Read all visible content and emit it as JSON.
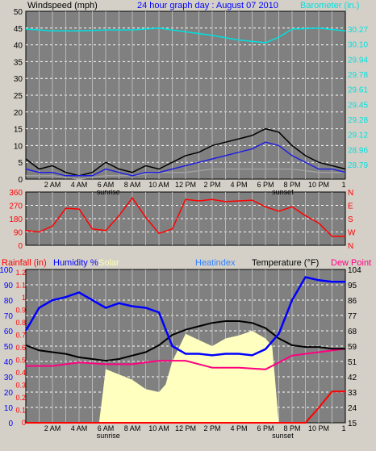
{
  "title": "24 hour graph day : August 07 2010",
  "colors": {
    "bg": "#d4d0c8",
    "plot": "#808080",
    "grid": "#ffffff",
    "wind": "#000000",
    "gust": "#2020e0",
    "windavg": "#a0a0a0",
    "baro": "#00e0e0",
    "dir": "#ff0000",
    "rain": "#ff0000",
    "humidity": "#0000ff",
    "solar": "#ffffc0",
    "temp": "#000000",
    "dew": "#ff0080",
    "heatindex": "#3080ff"
  },
  "chart_data": [
    {
      "type": "line",
      "title": "24 hour graph day : August 07 2010",
      "ylabel": "Windspeed (mph)",
      "y2label": "Barometer (in.)",
      "xticks": [
        "2 AM",
        "4 AM",
        "6 AM",
        "8 AM",
        "10 AM",
        "12 PM",
        "2 PM",
        "4 PM",
        "6 PM",
        "8 PM",
        "10 PM"
      ],
      "xmarkers": [
        "sunrise",
        "sunset"
      ],
      "ylim": [
        0,
        50
      ],
      "yticks": [
        "0",
        "5",
        "10",
        "15",
        "20",
        "25",
        "30",
        "35",
        "40",
        "45",
        "50"
      ],
      "y2ticks": [
        "28.79",
        "28.96",
        "29.12",
        "29.28",
        "29.45",
        "29.61",
        "29.78",
        "29.94",
        "30.10",
        "30.27"
      ],
      "series": [
        {
          "name": "Barometer",
          "axis": "y2",
          "x": [
            0,
            2,
            4,
            6,
            8,
            10,
            12,
            14,
            16,
            18,
            19,
            20,
            22,
            24
          ],
          "y": [
            30.27,
            30.25,
            30.25,
            30.26,
            30.26,
            30.28,
            30.24,
            30.2,
            30.15,
            30.12,
            30.18,
            30.27,
            30.28,
            30.25
          ]
        },
        {
          "name": "Windspeed",
          "x": [
            0,
            1,
            2,
            3,
            4,
            5,
            6,
            7,
            8,
            9,
            10,
            11,
            12,
            13,
            14,
            15,
            16,
            17,
            18,
            19,
            20,
            21,
            22,
            23,
            24
          ],
          "y": [
            6,
            3,
            4,
            2,
            1,
            2,
            5,
            3,
            2,
            4,
            3,
            5,
            7,
            8,
            10,
            11,
            12,
            13,
            15,
            14,
            10,
            7,
            5,
            4,
            3
          ]
        },
        {
          "name": "Gust",
          "x": [
            0,
            1,
            2,
            3,
            4,
            5,
            6,
            7,
            8,
            9,
            10,
            11,
            12,
            13,
            14,
            15,
            16,
            17,
            18,
            19,
            20,
            21,
            22,
            23,
            24
          ],
          "y": [
            3,
            2,
            2,
            1,
            1,
            1,
            3,
            2,
            1,
            2,
            2,
            3,
            4,
            5,
            6,
            7,
            8,
            9,
            11,
            10,
            7,
            5,
            3,
            3,
            2
          ]
        },
        {
          "name": "Wind average",
          "x": [
            0,
            2,
            4,
            6,
            8,
            10,
            12,
            14,
            16,
            18,
            20,
            22,
            24
          ],
          "y": [
            1,
            1,
            0,
            1,
            1,
            2,
            2,
            3,
            3,
            3,
            3,
            2,
            2
          ]
        }
      ]
    },
    {
      "type": "line",
      "ylim": [
        0,
        360
      ],
      "yticks": [
        "0",
        "90",
        "180",
        "270",
        "360"
      ],
      "y2ticks": [
        "N",
        "W",
        "S",
        "E",
        "N"
      ],
      "series": [
        {
          "name": "Wind direction",
          "x": [
            0,
            1,
            2,
            3,
            4,
            5,
            6,
            7,
            8,
            9,
            10,
            11,
            12,
            13,
            14,
            15,
            16,
            17,
            18,
            19,
            20,
            21,
            22,
            23,
            24
          ],
          "y": [
            100,
            90,
            130,
            250,
            245,
            110,
            100,
            200,
            320,
            190,
            80,
            110,
            310,
            300,
            310,
            295,
            300,
            305,
            260,
            230,
            260,
            200,
            150,
            60,
            60
          ]
        }
      ]
    },
    {
      "type": "line",
      "ylabel": "Rainfall (in)",
      "legend": [
        "Humidity %",
        "Solar",
        "Heatindex",
        "Temperature (°F)",
        "Dew Point"
      ],
      "xticks": [
        "2 AM",
        "4 AM",
        "6 AM",
        "8 AM",
        "10 AM",
        "12 PM",
        "2 PM",
        "4 PM",
        "6 PM",
        "8 PM",
        "10 PM"
      ],
      "xmarkers": [
        "sunrise",
        "sunset"
      ],
      "yticks_humidity": [
        "0",
        "10",
        "20",
        "30",
        "40",
        "50",
        "60",
        "70",
        "80",
        "90",
        "100"
      ],
      "yticks_rain": [
        "0",
        "0.1",
        "0.2",
        "0.3",
        "0.4",
        "0.5",
        "0.6",
        "0.7",
        "0.8",
        "0.9",
        "1",
        "1.1",
        "1.2"
      ],
      "yticks_temp": [
        "15",
        "24",
        "33",
        "42",
        "51",
        "59",
        "68",
        "77",
        "86",
        "95",
        "104"
      ],
      "series": [
        {
          "name": "Humidity %",
          "x": [
            0,
            1,
            2,
            3,
            4,
            5,
            6,
            7,
            8,
            9,
            10,
            11,
            12,
            13,
            14,
            15,
            16,
            17,
            18,
            19,
            20,
            21,
            22,
            23,
            24
          ],
          "y": [
            60,
            75,
            80,
            82,
            85,
            80,
            75,
            78,
            76,
            75,
            72,
            50,
            45,
            45,
            44,
            45,
            45,
            44,
            48,
            58,
            80,
            95,
            93,
            92,
            92
          ]
        },
        {
          "name": "Temperature (°F)",
          "x": [
            0,
            1,
            2,
            3,
            4,
            5,
            6,
            7,
            8,
            9,
            10,
            11,
            12,
            13,
            14,
            15,
            16,
            17,
            18,
            19,
            20,
            21,
            22,
            23,
            24
          ],
          "y": [
            60,
            57,
            56,
            55,
            53,
            52,
            51,
            52,
            54,
            56,
            60,
            66,
            69,
            71,
            73,
            74,
            74,
            73,
            70,
            64,
            60,
            59,
            59,
            58,
            58
          ]
        },
        {
          "name": "Dew Point",
          "x": [
            0,
            2,
            4,
            6,
            8,
            10,
            12,
            14,
            16,
            18,
            20,
            22,
            24
          ],
          "y": [
            48,
            48,
            50,
            49,
            49,
            51,
            51,
            47,
            47,
            46,
            54,
            56,
            58
          ]
        },
        {
          "name": "Solar",
          "x": [
            0,
            5.5,
            6,
            8,
            9,
            10,
            10.5,
            11,
            12,
            14,
            15,
            16,
            17,
            18,
            18.5,
            19,
            20,
            24
          ],
          "y": [
            0,
            0,
            35,
            28,
            22,
            20,
            25,
            40,
            58,
            50,
            55,
            57,
            60,
            55,
            50,
            0,
            0,
            0
          ]
        },
        {
          "name": "Rainfall (in)",
          "x": [
            0,
            18,
            19,
            20,
            21,
            22,
            23,
            24
          ],
          "y": [
            0,
            0,
            0,
            0,
            0,
            0.12,
            0.25,
            0.25
          ]
        }
      ]
    }
  ]
}
